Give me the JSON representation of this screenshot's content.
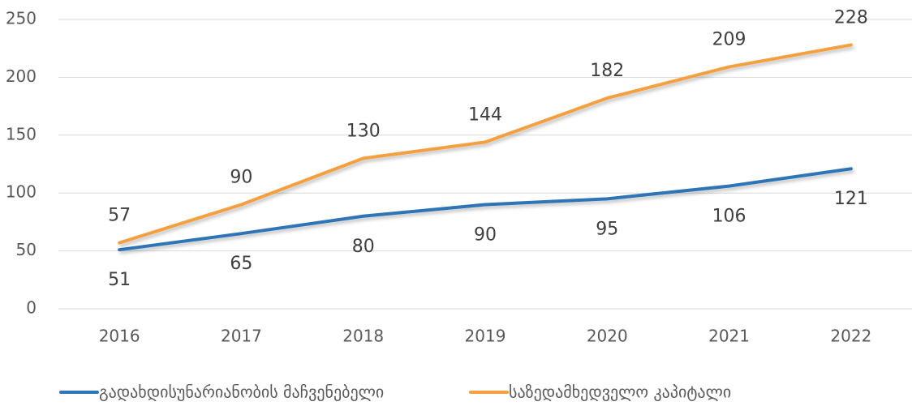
{
  "chart_data": {
    "type": "line",
    "categories": [
      "2016",
      "2017",
      "2018",
      "2019",
      "2020",
      "2021",
      "2022"
    ],
    "series": [
      {
        "name": "გადახდისუნარიანობის მაჩვენებელი",
        "color": "#2e75b6",
        "values": [
          51,
          65,
          80,
          90,
          95,
          106,
          121
        ]
      },
      {
        "name": "საზედამხედველო კაპიტალი",
        "color": "#f4a041",
        "values": [
          57,
          90,
          130,
          144,
          182,
          209,
          228
        ]
      }
    ],
    "ylim": [
      0,
      250
    ],
    "yticks": [
      0,
      50,
      100,
      150,
      200,
      250
    ],
    "grid": true,
    "legend": "bottom"
  }
}
